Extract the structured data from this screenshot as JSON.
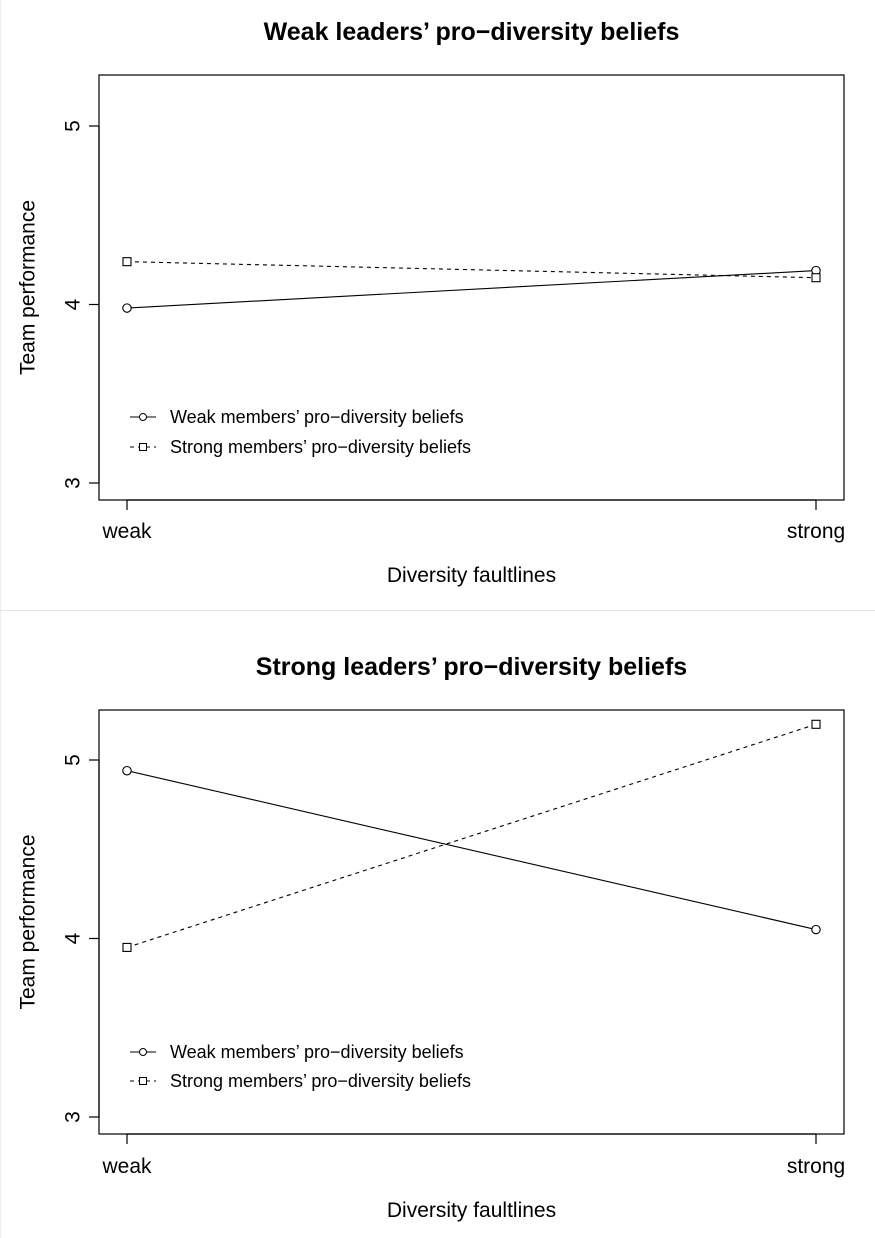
{
  "chart_data": [
    {
      "type": "line",
      "title": "Weak leaders’ pro−diversity beliefs",
      "xlabel": "Diversity faultlines",
      "ylabel": "Team performance",
      "categories": [
        "weak",
        "strong"
      ],
      "ylim": [
        3,
        5.25
      ],
      "yticks": [
        3,
        4,
        5
      ],
      "grid": false,
      "legend_position": "bottom-left",
      "series": [
        {
          "name": "Weak members’ pro−diversity beliefs",
          "values": [
            3.98,
            4.19
          ],
          "marker": "circle",
          "line": "solid"
        },
        {
          "name": "Strong members’ pro−diversity beliefs",
          "values": [
            4.24,
            4.15
          ],
          "marker": "square",
          "line": "dashed"
        }
      ]
    },
    {
      "type": "line",
      "title": "Strong leaders’ pro−diversity beliefs",
      "xlabel": "Diversity faultlines",
      "ylabel": "Team performance",
      "categories": [
        "weak",
        "strong"
      ],
      "ylim": [
        3,
        5.25
      ],
      "yticks": [
        3,
        4,
        5
      ],
      "grid": false,
      "legend_position": "bottom-left",
      "series": [
        {
          "name": "Weak members’ pro−diversity beliefs",
          "values": [
            4.94,
            4.05
          ],
          "marker": "circle",
          "line": "solid"
        },
        {
          "name": "Strong members’ pro−diversity beliefs",
          "values": [
            3.95,
            5.2
          ],
          "marker": "square",
          "line": "dashed"
        }
      ]
    }
  ]
}
